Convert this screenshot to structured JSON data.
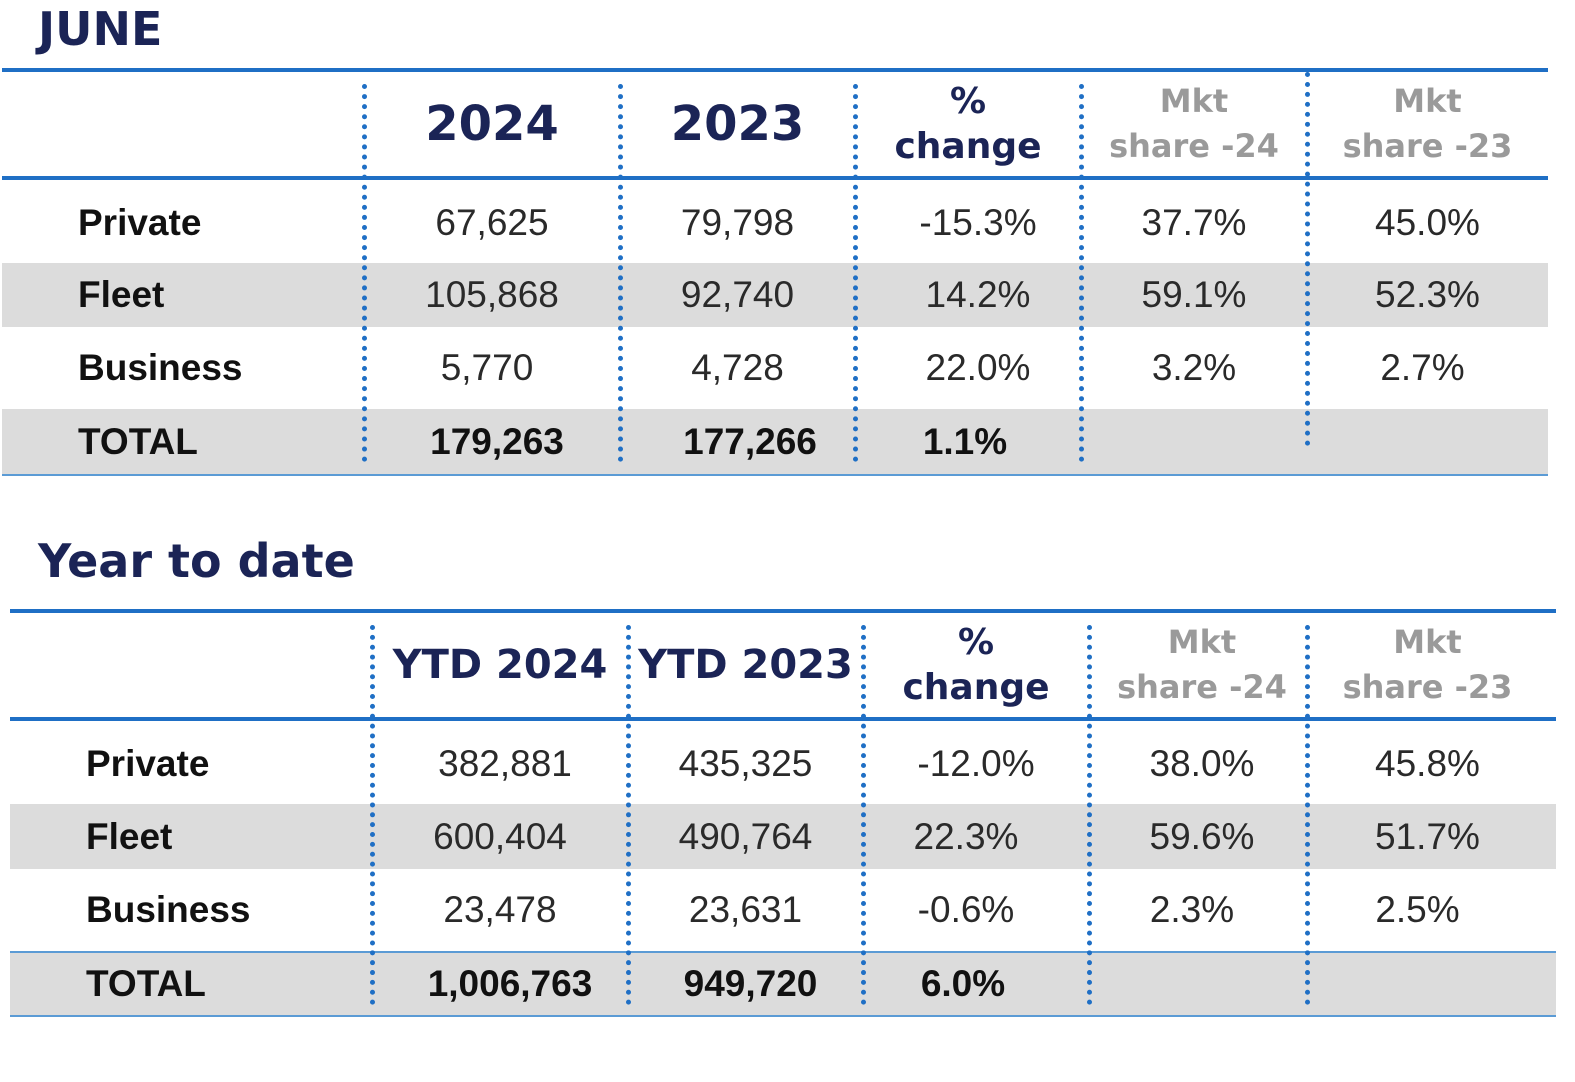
{
  "june": {
    "title": "JUNE",
    "headers": {
      "col1": "2024",
      "col2": "2023",
      "pct_line1": "%",
      "pct_line2": "change",
      "mkt24_line1": "Mkt",
      "mkt24_line2": "share -24",
      "mkt23_line1": "Mkt",
      "mkt23_line2": "share -23"
    },
    "rows": [
      {
        "label": "Private",
        "v2024": "67,625",
        "v2023": "79,798",
        "change": "-15.3%",
        "share24": "37.7%",
        "share23": "45.0%"
      },
      {
        "label": "Fleet",
        "v2024": "105,868",
        "v2023": "92,740",
        "change": "14.2%",
        "share24": "59.1%",
        "share23": "52.3%"
      },
      {
        "label": "Business",
        "v2024": "5,770",
        "v2023": "4,728",
        "change": "22.0%",
        "share24": "3.2%",
        "share23": "2.7%"
      },
      {
        "label": "TOTAL",
        "v2024": "179,263",
        "v2023": "177,266",
        "change": "1.1%",
        "share24": "",
        "share23": ""
      }
    ]
  },
  "ytd": {
    "title": "Year to date",
    "headers": {
      "col1": "YTD 2024",
      "col2": "YTD 2023",
      "pct_line1": "%",
      "pct_line2": "change",
      "mkt24_line1": "Mkt",
      "mkt24_line2": "share -24",
      "mkt23_line1": "Mkt",
      "mkt23_line2": "share -23"
    },
    "rows": [
      {
        "label": "Private",
        "v2024": "382,881",
        "v2023": "435,325",
        "change": "-12.0%",
        "share24": "38.0%",
        "share23": "45.8%"
      },
      {
        "label": "Fleet",
        "v2024": "600,404",
        "v2023": "490,764",
        "change": "22.3%",
        "share24": "59.6%",
        "share23": "51.7%"
      },
      {
        "label": "Business",
        "v2024": "23,478",
        "v2023": "23,631",
        "change": "-0.6%",
        "share24": "2.3%",
        "share23": "2.5%"
      },
      {
        "label": "TOTAL",
        "v2024": "1,006,763",
        "v2023": "949,720",
        "change": "6.0%",
        "share24": "",
        "share23": ""
      }
    ]
  }
}
